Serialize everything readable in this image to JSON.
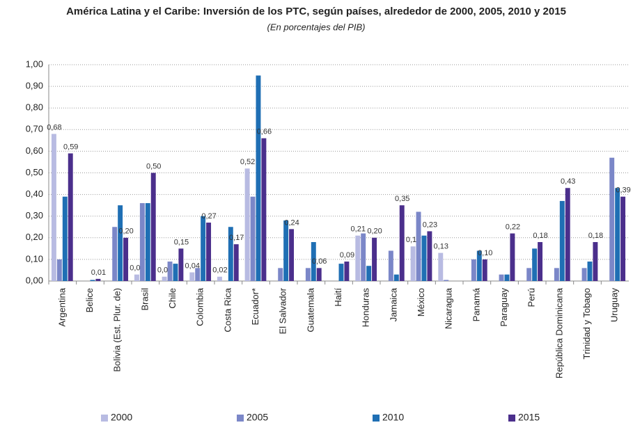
{
  "chart_data": {
    "type": "bar",
    "title": "América Latina y el Caribe: Inversión de los PTC, según países, alrededor de 2000, 2005, 2010 y 2015",
    "subtitle": "(En porcentajes del PIB)",
    "categories": [
      "Argentina",
      "Belice",
      "Bolivia (Est. Plur. de)",
      "Brasil",
      "Chile",
      "Colombia",
      "Costa Rica",
      "Ecuador*",
      "El Salvador",
      "Guatemala",
      "Haití",
      "Honduras",
      "Jamaica",
      "México",
      "Nicaragua",
      "Panamá",
      "Paraguay",
      "Perú",
      "República Dominicana",
      "Trinidad y Tobago",
      "Uruguay"
    ],
    "series": [
      {
        "name": "2000",
        "color": "#b8bbe2",
        "values": [
          0.68,
          null,
          null,
          0.03,
          0.02,
          0.04,
          0.02,
          0.52,
          null,
          null,
          null,
          0.21,
          null,
          0.16,
          0.13,
          null,
          null,
          null,
          null,
          null,
          null
        ],
        "value_labels": [
          "0,68",
          null,
          null,
          "0,03",
          "0,02",
          "0,04",
          "0,02",
          "0,52",
          null,
          null,
          null,
          "0,21",
          null,
          "0,16",
          "0,13",
          null,
          null,
          null,
          null,
          null,
          null
        ]
      },
      {
        "name": "2005",
        "color": "#7b87c8",
        "values": [
          0.1,
          null,
          0.25,
          0.36,
          0.09,
          0.06,
          null,
          0.39,
          0.06,
          0.06,
          null,
          0.22,
          0.14,
          0.32,
          0.005,
          0.1,
          0.03,
          0.06,
          0.06,
          0.06,
          0.57
        ]
      },
      {
        "name": "2010",
        "color": "#1f6fb4",
        "values": [
          0.39,
          0.005,
          0.35,
          0.36,
          0.08,
          0.3,
          0.25,
          0.95,
          0.28,
          0.18,
          0.08,
          0.07,
          0.03,
          0.21,
          null,
          0.14,
          0.03,
          0.15,
          0.37,
          0.09,
          0.43
        ]
      },
      {
        "name": "2015",
        "color": "#4b2f8c",
        "values": [
          0.59,
          0.01,
          0.2,
          0.5,
          0.15,
          0.27,
          0.17,
          0.66,
          0.24,
          0.06,
          0.09,
          0.2,
          0.35,
          0.23,
          null,
          0.1,
          0.22,
          0.18,
          0.43,
          0.18,
          0.39
        ],
        "value_labels": [
          "0,59",
          "0,01",
          "0,20",
          "0,50",
          "0,15",
          "0,27",
          "0,17",
          "0,66",
          "0,24",
          "0,06",
          "0,09",
          "0,20",
          "0,35",
          "0,23",
          null,
          "0,10",
          "0,22",
          "0,18",
          "0,43",
          "0,18",
          "0,39"
        ]
      }
    ],
    "ylim": [
      0,
      1
    ],
    "yticks": [
      {
        "value": 0,
        "label": "0,00"
      },
      {
        "value": 0.1,
        "label": "0,10"
      },
      {
        "value": 0.2,
        "label": "0,20"
      },
      {
        "value": 0.3,
        "label": "0,30"
      },
      {
        "value": 0.4,
        "label": "0,40"
      },
      {
        "value": 0.5,
        "label": "0,50"
      },
      {
        "value": 0.6,
        "label": "0,60"
      },
      {
        "value": 0.7,
        "label": "0,70"
      },
      {
        "value": 0.8,
        "label": "0,80"
      },
      {
        "value": 0.9,
        "label": "0,90"
      },
      {
        "value": 1,
        "label": "1,00"
      }
    ],
    "grid": true,
    "legend": "bottom"
  }
}
